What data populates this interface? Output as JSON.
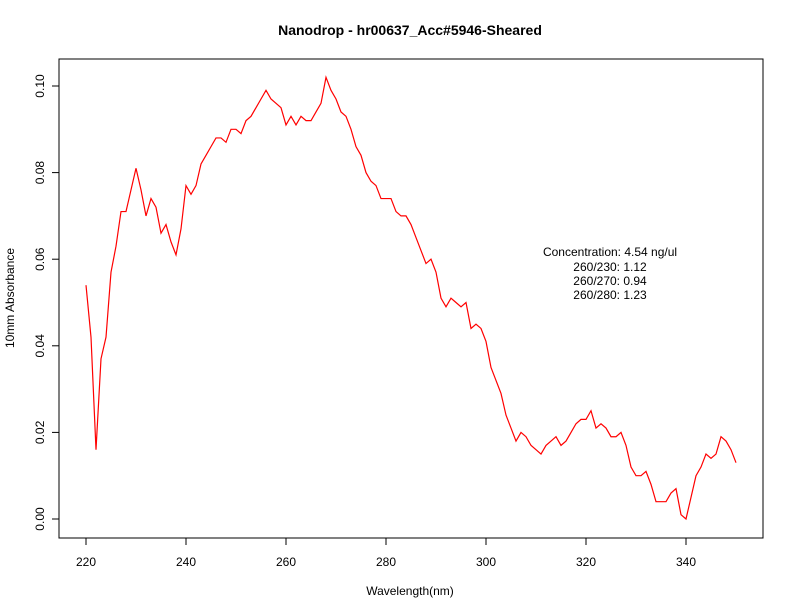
{
  "chart_data": {
    "type": "line",
    "title": "Nanodrop - hr00637_Acc#5946-Sheared",
    "xlabel": "Wavelength(nm)",
    "ylabel": "10mm Absorbance",
    "xlim": [
      220,
      350
    ],
    "ylim": [
      0.0,
      0.102
    ],
    "x_ticks": [
      220,
      240,
      260,
      280,
      300,
      320,
      340
    ],
    "x_tick_labels": [
      "220",
      "240",
      "260",
      "280",
      "300",
      "320",
      "340"
    ],
    "y_ticks": [
      0.0,
      0.02,
      0.04,
      0.06,
      0.08,
      0.1
    ],
    "y_tick_labels": [
      "0.00",
      "0.02",
      "0.04",
      "0.06",
      "0.08",
      "0.10"
    ],
    "grid": false,
    "line_color": "#ff0000",
    "annotations": [
      "Concentration: 4.54 ng/ul",
      "260/230: 1.12",
      "260/270: 0.94",
      "260/280: 1.23"
    ],
    "series": [
      {
        "color": "#ff0000",
        "x": [
          220,
          221,
          222,
          223,
          224,
          225,
          226,
          227,
          228,
          229,
          230,
          231,
          232,
          233,
          234,
          235,
          236,
          237,
          238,
          239,
          240,
          241,
          242,
          243,
          244,
          245,
          246,
          247,
          248,
          249,
          250,
          251,
          252,
          253,
          254,
          255,
          256,
          257,
          258,
          259,
          260,
          261,
          262,
          263,
          264,
          265,
          266,
          267,
          268,
          269,
          270,
          271,
          272,
          273,
          274,
          275,
          276,
          277,
          278,
          279,
          280,
          281,
          282,
          283,
          284,
          285,
          286,
          287,
          288,
          289,
          290,
          291,
          292,
          293,
          294,
          295,
          296,
          297,
          298,
          299,
          300,
          301,
          302,
          303,
          304,
          305,
          306,
          307,
          308,
          309,
          310,
          311,
          312,
          313,
          314,
          315,
          316,
          317,
          318,
          319,
          320,
          321,
          322,
          323,
          324,
          325,
          326,
          327,
          328,
          329,
          330,
          331,
          332,
          333,
          334,
          335,
          336,
          337,
          338,
          339,
          340,
          341,
          342,
          343,
          344,
          345,
          346,
          347,
          348,
          349,
          350
        ],
        "y": [
          0.054,
          0.042,
          0.016,
          0.037,
          0.042,
          0.057,
          0.063,
          0.071,
          0.071,
          0.076,
          0.081,
          0.076,
          0.07,
          0.074,
          0.072,
          0.066,
          0.068,
          0.064,
          0.061,
          0.067,
          0.077,
          0.075,
          0.077,
          0.082,
          0.084,
          0.086,
          0.088,
          0.088,
          0.087,
          0.09,
          0.09,
          0.089,
          0.092,
          0.093,
          0.095,
          0.097,
          0.099,
          0.097,
          0.096,
          0.095,
          0.091,
          0.093,
          0.091,
          0.093,
          0.092,
          0.092,
          0.094,
          0.096,
          0.102,
          0.099,
          0.097,
          0.094,
          0.093,
          0.09,
          0.086,
          0.084,
          0.08,
          0.078,
          0.077,
          0.074,
          0.074,
          0.074,
          0.071,
          0.07,
          0.07,
          0.068,
          0.065,
          0.062,
          0.059,
          0.06,
          0.057,
          0.051,
          0.049,
          0.051,
          0.05,
          0.049,
          0.05,
          0.044,
          0.045,
          0.044,
          0.041,
          0.035,
          0.032,
          0.029,
          0.024,
          0.021,
          0.018,
          0.02,
          0.019,
          0.017,
          0.016,
          0.015,
          0.017,
          0.018,
          0.019,
          0.017,
          0.018,
          0.02,
          0.022,
          0.023,
          0.023,
          0.025,
          0.021,
          0.022,
          0.021,
          0.019,
          0.019,
          0.02,
          0.017,
          0.012,
          0.01,
          0.01,
          0.011,
          0.008,
          0.004,
          0.004,
          0.004,
          0.006,
          0.007,
          0.001,
          0.0,
          0.005,
          0.01,
          0.012,
          0.015,
          0.014,
          0.015,
          0.019,
          0.018,
          0.016,
          0.013
        ]
      }
    ]
  }
}
